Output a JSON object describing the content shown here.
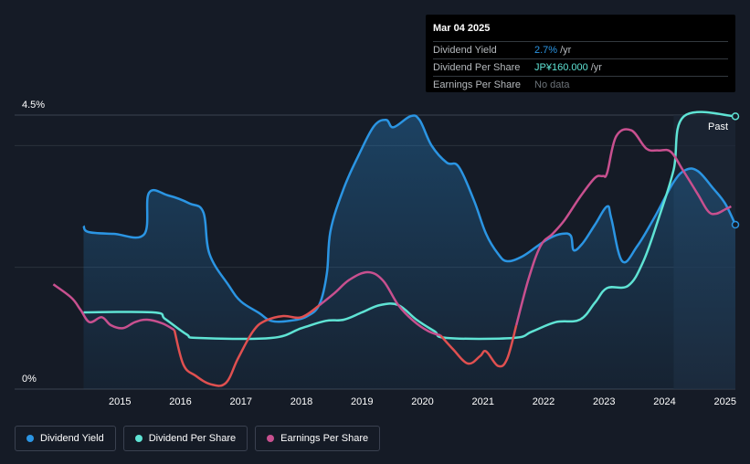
{
  "tooltip": {
    "date": "Mar 04 2025",
    "rows": [
      {
        "label": "Dividend Yield",
        "value": "2.7%",
        "unit": "/yr",
        "color": "#2b95e3"
      },
      {
        "label": "Dividend Per Share",
        "value": "JP¥160.000",
        "unit": "/yr",
        "color": "#5fe3d4"
      },
      {
        "label": "Earnings Per Share",
        "value": "No data",
        "unit": "",
        "color": "#6c7379"
      }
    ]
  },
  "legend": [
    {
      "label": "Dividend Yield",
      "color": "#2b95e3"
    },
    {
      "label": "Dividend Per Share",
      "color": "#5fe3d4"
    },
    {
      "label": "Earnings Per Share",
      "color": "#c8508f"
    }
  ],
  "chart_data": {
    "type": "line",
    "y_top_label": "4.5%",
    "y_bottom_label": "0%",
    "past_label": "Past",
    "ylim": [
      0,
      4.5
    ],
    "xlim": [
      2014.0,
      2025.17
    ],
    "x_ticks": [
      2015,
      2016,
      2017,
      2018,
      2019,
      2020,
      2021,
      2022,
      2023,
      2024,
      2025
    ],
    "x_tick_labels": [
      "2015",
      "2016",
      "2017",
      "2018",
      "2019",
      "2020",
      "2021",
      "2022",
      "2023",
      "2024",
      "2025"
    ],
    "grid": true,
    "series": [
      {
        "name": "Dividend Yield",
        "color": "#2b95e3",
        "area": true,
        "points": [
          [
            2014.4,
            2.68
          ],
          [
            2014.48,
            2.58
          ],
          [
            2014.9,
            2.55
          ],
          [
            2015.4,
            2.54
          ],
          [
            2015.48,
            3.22
          ],
          [
            2015.8,
            3.18
          ],
          [
            2016.15,
            3.05
          ],
          [
            2016.38,
            2.9
          ],
          [
            2016.48,
            2.22
          ],
          [
            2016.8,
            1.7
          ],
          [
            2017.0,
            1.44
          ],
          [
            2017.3,
            1.25
          ],
          [
            2017.5,
            1.12
          ],
          [
            2017.8,
            1.12
          ],
          [
            2018.1,
            1.2
          ],
          [
            2018.3,
            1.4
          ],
          [
            2018.42,
            1.9
          ],
          [
            2018.48,
            2.6
          ],
          [
            2018.7,
            3.3
          ],
          [
            2018.95,
            3.85
          ],
          [
            2019.2,
            4.32
          ],
          [
            2019.4,
            4.42
          ],
          [
            2019.52,
            4.3
          ],
          [
            2019.8,
            4.48
          ],
          [
            2019.95,
            4.42
          ],
          [
            2020.15,
            4.0
          ],
          [
            2020.4,
            3.72
          ],
          [
            2020.6,
            3.65
          ],
          [
            2020.85,
            3.1
          ],
          [
            2021.05,
            2.55
          ],
          [
            2021.25,
            2.22
          ],
          [
            2021.4,
            2.1
          ],
          [
            2021.65,
            2.18
          ],
          [
            2021.9,
            2.35
          ],
          [
            2022.1,
            2.48
          ],
          [
            2022.3,
            2.55
          ],
          [
            2022.45,
            2.52
          ],
          [
            2022.5,
            2.28
          ],
          [
            2022.65,
            2.4
          ],
          [
            2022.85,
            2.7
          ],
          [
            2023.05,
            3.0
          ],
          [
            2023.12,
            2.8
          ],
          [
            2023.3,
            2.1
          ],
          [
            2023.55,
            2.35
          ],
          [
            2023.85,
            2.85
          ],
          [
            2024.15,
            3.4
          ],
          [
            2024.35,
            3.6
          ],
          [
            2024.55,
            3.58
          ],
          [
            2024.8,
            3.3
          ],
          [
            2025.0,
            3.05
          ],
          [
            2025.17,
            2.7
          ]
        ]
      },
      {
        "name": "Dividend Per Share",
        "color": "#5fe3d4",
        "area": false,
        "points": [
          [
            2014.4,
            1.26
          ],
          [
            2015.55,
            1.26
          ],
          [
            2015.75,
            1.15
          ],
          [
            2016.1,
            0.9
          ],
          [
            2016.3,
            0.84
          ],
          [
            2017.5,
            0.84
          ],
          [
            2018.0,
            1.0
          ],
          [
            2018.4,
            1.12
          ],
          [
            2018.7,
            1.14
          ],
          [
            2019.0,
            1.26
          ],
          [
            2019.3,
            1.38
          ],
          [
            2019.6,
            1.38
          ],
          [
            2019.9,
            1.14
          ],
          [
            2020.2,
            0.95
          ],
          [
            2020.4,
            0.84
          ],
          [
            2021.5,
            0.84
          ],
          [
            2021.8,
            0.94
          ],
          [
            2022.2,
            1.1
          ],
          [
            2022.6,
            1.14
          ],
          [
            2022.85,
            1.42
          ],
          [
            2023.05,
            1.66
          ],
          [
            2023.4,
            1.7
          ],
          [
            2023.65,
            2.1
          ],
          [
            2023.9,
            2.8
          ],
          [
            2024.15,
            3.6
          ],
          [
            2024.32,
            4.48
          ],
          [
            2025.17,
            4.48
          ]
        ]
      },
      {
        "name": "Earnings Per Share",
        "color": "#c8508f",
        "area": false,
        "negative_color": "#e05050",
        "points": [
          [
            2013.9,
            1.72
          ],
          [
            2014.2,
            1.5
          ],
          [
            2014.35,
            1.3
          ],
          [
            2014.5,
            1.1
          ],
          [
            2014.7,
            1.18
          ],
          [
            2014.85,
            1.05
          ],
          [
            2015.05,
            1.0
          ],
          [
            2015.25,
            1.1
          ],
          [
            2015.45,
            1.14
          ],
          [
            2015.7,
            1.08
          ],
          [
            2015.9,
            0.97
          ],
          [
            2016.05,
            0.4
          ],
          [
            2016.25,
            0.22
          ],
          [
            2016.5,
            0.08
          ],
          [
            2016.75,
            0.1
          ],
          [
            2016.95,
            0.5
          ],
          [
            2017.2,
            0.95
          ],
          [
            2017.4,
            1.12
          ],
          [
            2017.7,
            1.2
          ],
          [
            2018.0,
            1.18
          ],
          [
            2018.3,
            1.38
          ],
          [
            2018.55,
            1.58
          ],
          [
            2018.8,
            1.8
          ],
          [
            2019.1,
            1.92
          ],
          [
            2019.35,
            1.78
          ],
          [
            2019.6,
            1.38
          ],
          [
            2019.85,
            1.12
          ],
          [
            2020.1,
            0.95
          ],
          [
            2020.3,
            0.88
          ],
          [
            2020.5,
            0.66
          ],
          [
            2020.75,
            0.42
          ],
          [
            2020.95,
            0.54
          ],
          [
            2021.05,
            0.62
          ],
          [
            2021.25,
            0.38
          ],
          [
            2021.4,
            0.5
          ],
          [
            2021.55,
            1.05
          ],
          [
            2021.75,
            1.8
          ],
          [
            2021.95,
            2.35
          ],
          [
            2022.15,
            2.55
          ],
          [
            2022.35,
            2.78
          ],
          [
            2022.6,
            3.15
          ],
          [
            2022.85,
            3.47
          ],
          [
            2022.98,
            3.5
          ],
          [
            2023.05,
            3.55
          ],
          [
            2023.2,
            4.15
          ],
          [
            2023.45,
            4.25
          ],
          [
            2023.7,
            3.95
          ],
          [
            2023.9,
            3.92
          ],
          [
            2024.1,
            3.9
          ],
          [
            2024.3,
            3.6
          ],
          [
            2024.55,
            3.2
          ],
          [
            2024.72,
            2.92
          ],
          [
            2024.85,
            2.88
          ],
          [
            2025.0,
            2.95
          ],
          [
            2025.1,
            3.0
          ]
        ]
      }
    ]
  }
}
